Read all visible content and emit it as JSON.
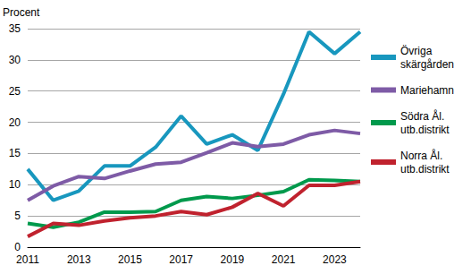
{
  "chart_data": {
    "type": "line",
    "ylabel": "Procent",
    "x": [
      2011,
      2012,
      2013,
      2014,
      2015,
      2016,
      2017,
      2018,
      2019,
      2020,
      2021,
      2022,
      2023,
      2024
    ],
    "xlim": [
      2011,
      2024
    ],
    "xticks": [
      2011,
      2013,
      2015,
      2017,
      2019,
      2021,
      2023
    ],
    "ylim": [
      0,
      35
    ],
    "yticks": [
      0,
      5,
      10,
      15,
      20,
      25,
      30,
      35
    ],
    "grid": true,
    "legend": "right",
    "series": [
      {
        "name": "Övriga skärgården",
        "color": "#1897BE",
        "values": [
          12.5,
          7.5,
          9,
          13,
          13,
          16,
          21,
          16.5,
          18,
          15.5,
          24.5,
          34.5,
          31,
          34.5
        ]
      },
      {
        "name": "Mariehamn",
        "color": "#7E5BA6",
        "values": [
          7.5,
          9.8,
          11.3,
          11,
          12.2,
          13.3,
          13.6,
          15.1,
          16.7,
          16.1,
          16.5,
          18,
          18.7,
          18.2
        ]
      },
      {
        "name": "Södra Ål. utb.distrikt",
        "color": "#00994C",
        "values": [
          3.8,
          3.2,
          4,
          5.6,
          5.6,
          5.7,
          7.5,
          8.1,
          7.8,
          8.3,
          8.9,
          10.8,
          10.7,
          10.5
        ]
      },
      {
        "name": "Norra Ål. utb.distrikt",
        "color": "#C0222E",
        "values": [
          1.7,
          3.8,
          3.5,
          4.2,
          4.7,
          5,
          5.7,
          5.2,
          6.4,
          8.6,
          6.6,
          9.9,
          9.9,
          10.5
        ]
      }
    ]
  }
}
